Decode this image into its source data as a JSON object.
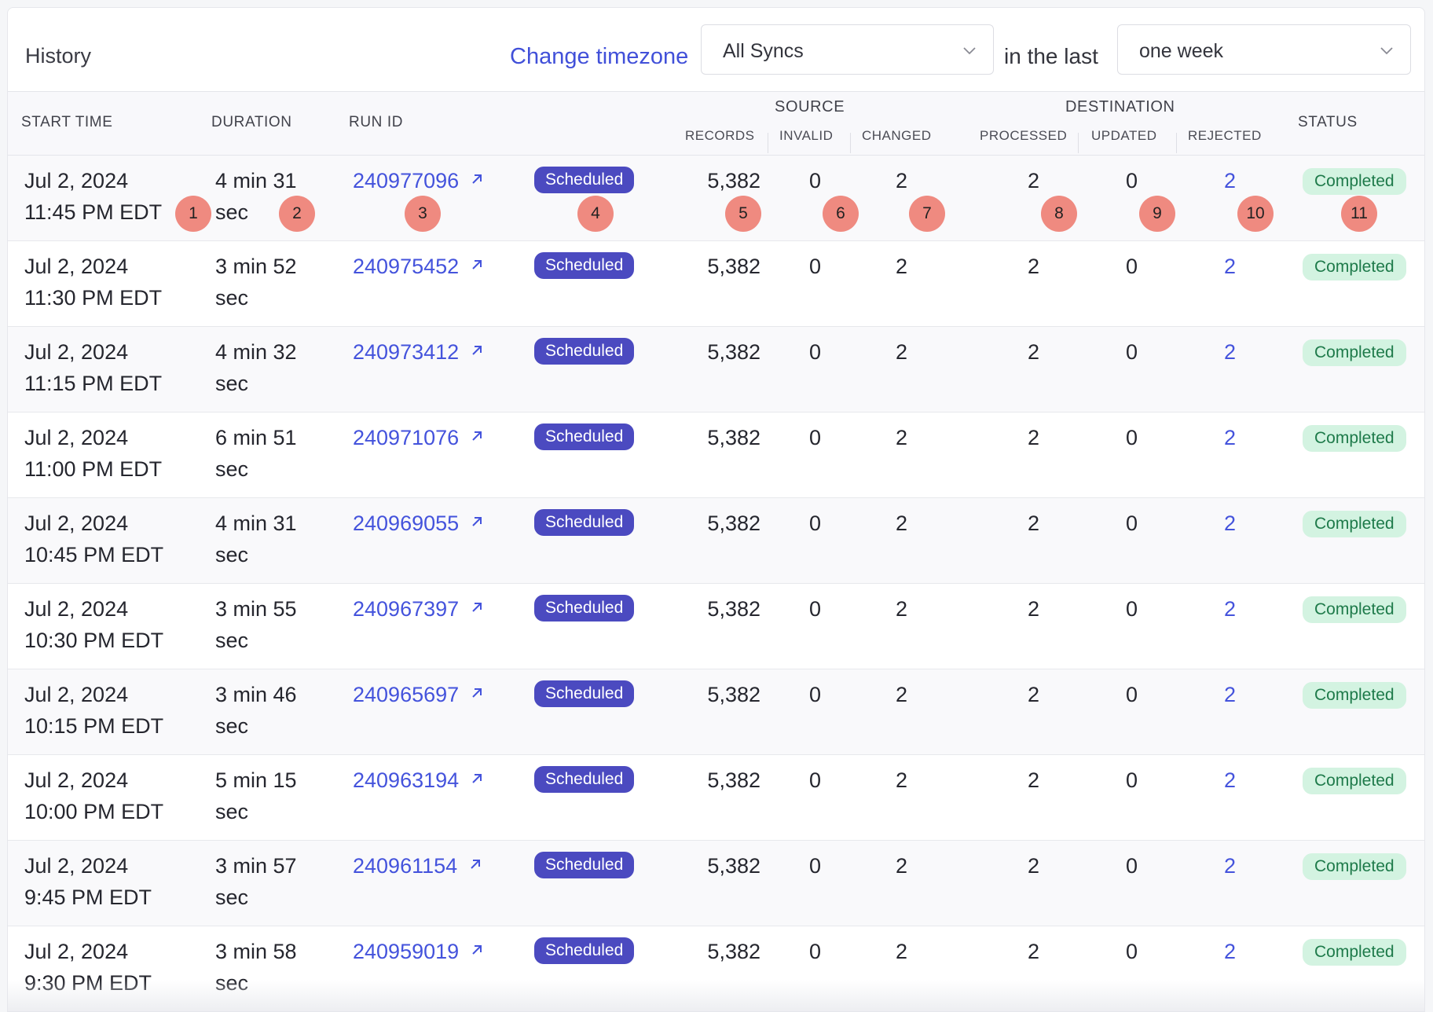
{
  "header": {
    "title": "History",
    "change_timezone": "Change timezone",
    "sync_filter": {
      "selected": "All Syncs"
    },
    "in_the_last": "in the last",
    "range_filter": {
      "selected": "one week"
    }
  },
  "columns": {
    "start_time": "START TIME",
    "duration": "DURATION",
    "run_id": "RUN ID",
    "source_group": "SOURCE",
    "records": "RECORDS",
    "invalid": "INVALID",
    "changed": "CHANGED",
    "destination_group": "DESTINATION",
    "processed": "PROCESSED",
    "updated": "UPDATED",
    "rejected": "REJECTED",
    "status": "STATUS"
  },
  "rows": [
    {
      "date": "Jul 2, 2024",
      "time": "11:45 PM EDT",
      "duration_a": "4 min 31",
      "duration_b": "sec",
      "run_id": "240977096",
      "trigger": "Scheduled",
      "records": "5,382",
      "invalid": "0",
      "changed": "2",
      "processed": "2",
      "updated": "0",
      "rejected": "2",
      "status": "Completed"
    },
    {
      "date": "Jul 2, 2024",
      "time": "11:30 PM EDT",
      "duration_a": "3 min 52",
      "duration_b": "sec",
      "run_id": "240975452",
      "trigger": "Scheduled",
      "records": "5,382",
      "invalid": "0",
      "changed": "2",
      "processed": "2",
      "updated": "0",
      "rejected": "2",
      "status": "Completed"
    },
    {
      "date": "Jul 2, 2024",
      "time": "11:15 PM EDT",
      "duration_a": "4 min 32",
      "duration_b": "sec",
      "run_id": "240973412",
      "trigger": "Scheduled",
      "records": "5,382",
      "invalid": "0",
      "changed": "2",
      "processed": "2",
      "updated": "0",
      "rejected": "2",
      "status": "Completed"
    },
    {
      "date": "Jul 2, 2024",
      "time": "11:00 PM EDT",
      "duration_a": "6 min 51",
      "duration_b": "sec",
      "run_id": "240971076",
      "trigger": "Scheduled",
      "records": "5,382",
      "invalid": "0",
      "changed": "2",
      "processed": "2",
      "updated": "0",
      "rejected": "2",
      "status": "Completed"
    },
    {
      "date": "Jul 2, 2024",
      "time": "10:45 PM EDT",
      "duration_a": "4 min 31",
      "duration_b": "sec",
      "run_id": "240969055",
      "trigger": "Scheduled",
      "records": "5,382",
      "invalid": "0",
      "changed": "2",
      "processed": "2",
      "updated": "0",
      "rejected": "2",
      "status": "Completed"
    },
    {
      "date": "Jul 2, 2024",
      "time": "10:30 PM EDT",
      "duration_a": "3 min 55",
      "duration_b": "sec",
      "run_id": "240967397",
      "trigger": "Scheduled",
      "records": "5,382",
      "invalid": "0",
      "changed": "2",
      "processed": "2",
      "updated": "0",
      "rejected": "2",
      "status": "Completed"
    },
    {
      "date": "Jul 2, 2024",
      "time": "10:15 PM EDT",
      "duration_a": "3 min 46",
      "duration_b": "sec",
      "run_id": "240965697",
      "trigger": "Scheduled",
      "records": "5,382",
      "invalid": "0",
      "changed": "2",
      "processed": "2",
      "updated": "0",
      "rejected": "2",
      "status": "Completed"
    },
    {
      "date": "Jul 2, 2024",
      "time": "10:00 PM EDT",
      "duration_a": "5 min 15",
      "duration_b": "sec",
      "run_id": "240963194",
      "trigger": "Scheduled",
      "records": "5,382",
      "invalid": "0",
      "changed": "2",
      "processed": "2",
      "updated": "0",
      "rejected": "2",
      "status": "Completed"
    },
    {
      "date": "Jul 2, 2024",
      "time": "9:45 PM EDT",
      "duration_a": "3 min 57",
      "duration_b": "sec",
      "run_id": "240961154",
      "trigger": "Scheduled",
      "records": "5,382",
      "invalid": "0",
      "changed": "2",
      "processed": "2",
      "updated": "0",
      "rejected": "2",
      "status": "Completed"
    },
    {
      "date": "Jul 2, 2024",
      "time": "9:30 PM EDT",
      "duration_a": "3 min 58",
      "duration_b": "sec",
      "run_id": "240959019",
      "trigger": "Scheduled",
      "records": "5,382",
      "invalid": "0",
      "changed": "2",
      "processed": "2",
      "updated": "0",
      "rejected": "2",
      "status": "Completed"
    }
  ],
  "markers": [
    "1",
    "2",
    "3",
    "4",
    "5",
    "6",
    "7",
    "8",
    "9",
    "10",
    "11"
  ],
  "colors": {
    "accent_link": "#4453dc",
    "scheduled_badge": "#4b4ac0",
    "completed_badge_bg": "#d3f3e1",
    "completed_badge_text": "#1e7a4a",
    "marker": "#ef8a80"
  }
}
